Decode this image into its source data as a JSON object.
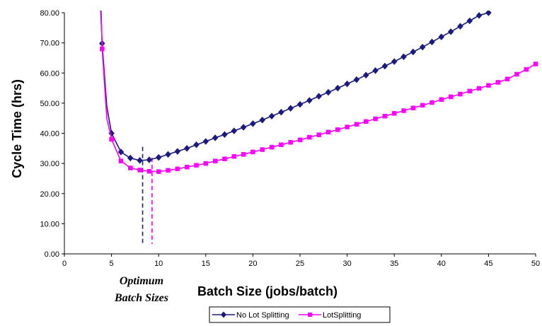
{
  "colors": {
    "no_lot_splitting": "#1a1a80",
    "lot_splitting": "#ff00ff",
    "axis": "#000000",
    "background": "#ffffff"
  },
  "chart_data": {
    "type": "line",
    "title": "",
    "xlabel": "Batch Size (jobs/batch)",
    "ylabel": "Cycle Time (hrs)",
    "xlim": [
      0,
      50
    ],
    "ylim": [
      0,
      80
    ],
    "x_ticks": [
      "0",
      "5",
      "10",
      "15",
      "20",
      "25",
      "30",
      "35",
      "40",
      "45",
      "50"
    ],
    "y_ticks": [
      "0.00",
      "10.00",
      "20.00",
      "30.00",
      "40.00",
      "50.00",
      "60.00",
      "70.00",
      "80.00"
    ],
    "grid": false,
    "legend_position": "bottom",
    "annotation": {
      "line1": "Optimum",
      "line2": "Batch Sizes",
      "optimum_x": [
        8.3,
        9.3
      ]
    },
    "series": [
      {
        "name": "No Lot Splitting",
        "marker": "diamond",
        "points": [
          [
            4,
            69.8
          ],
          [
            4.5,
            49.0
          ],
          [
            5,
            40.0
          ],
          [
            6,
            33.8
          ],
          [
            7,
            31.8
          ],
          [
            8,
            31.0
          ],
          [
            9,
            31.2
          ],
          [
            10,
            32.0
          ],
          [
            11,
            33.0
          ],
          [
            12,
            34.0
          ],
          [
            13,
            35.0
          ],
          [
            14,
            36.2
          ],
          [
            15,
            37.3
          ],
          [
            16,
            38.5
          ],
          [
            17,
            39.6
          ],
          [
            18,
            40.8
          ],
          [
            19,
            42.0
          ],
          [
            20,
            43.2
          ],
          [
            21,
            44.4
          ],
          [
            22,
            45.7
          ],
          [
            23,
            47.0
          ],
          [
            24,
            48.3
          ],
          [
            25,
            49.6
          ],
          [
            26,
            50.9
          ],
          [
            27,
            52.3
          ],
          [
            28,
            53.6
          ],
          [
            29,
            55.0
          ],
          [
            30,
            56.4
          ],
          [
            31,
            57.8
          ],
          [
            32,
            59.3
          ],
          [
            33,
            60.8
          ],
          [
            34,
            62.3
          ],
          [
            35,
            63.8
          ],
          [
            36,
            65.4
          ],
          [
            37,
            67.0
          ],
          [
            38,
            68.6
          ],
          [
            39,
            70.3
          ],
          [
            40,
            72.0
          ],
          [
            41,
            73.7
          ],
          [
            42,
            75.5
          ],
          [
            43,
            77.3
          ],
          [
            44,
            79.1
          ],
          [
            45,
            80.0
          ]
        ]
      },
      {
        "name": "LotSplitting",
        "marker": "square",
        "points": [
          [
            4,
            68.0
          ],
          [
            4.5,
            45.0
          ],
          [
            5,
            38.0
          ],
          [
            6,
            30.8
          ],
          [
            7,
            28.5
          ],
          [
            8,
            27.8
          ],
          [
            9,
            27.4
          ],
          [
            10,
            27.3
          ],
          [
            11,
            27.7
          ],
          [
            12,
            28.2
          ],
          [
            13,
            28.8
          ],
          [
            14,
            29.4
          ],
          [
            15,
            30.0
          ],
          [
            16,
            30.8
          ],
          [
            17,
            31.5
          ],
          [
            18,
            32.3
          ],
          [
            19,
            33.0
          ],
          [
            20,
            33.8
          ],
          [
            21,
            34.6
          ],
          [
            22,
            35.4
          ],
          [
            23,
            36.2
          ],
          [
            24,
            37.0
          ],
          [
            25,
            37.8
          ],
          [
            26,
            38.7
          ],
          [
            27,
            39.5
          ],
          [
            28,
            40.4
          ],
          [
            29,
            41.2
          ],
          [
            30,
            42.1
          ],
          [
            31,
            43.0
          ],
          [
            32,
            43.9
          ],
          [
            33,
            44.8
          ],
          [
            34,
            45.7
          ],
          [
            35,
            46.6
          ],
          [
            36,
            47.5
          ],
          [
            37,
            48.4
          ],
          [
            38,
            49.3
          ],
          [
            39,
            50.2
          ],
          [
            40,
            51.2
          ],
          [
            41,
            52.1
          ],
          [
            42,
            53.0
          ],
          [
            43,
            54.0
          ],
          [
            44,
            54.9
          ],
          [
            45,
            55.9
          ],
          [
            46,
            56.9
          ],
          [
            47,
            58.0
          ],
          [
            48,
            59.6
          ],
          [
            49,
            61.2
          ],
          [
            50,
            63.0
          ]
        ]
      }
    ]
  }
}
